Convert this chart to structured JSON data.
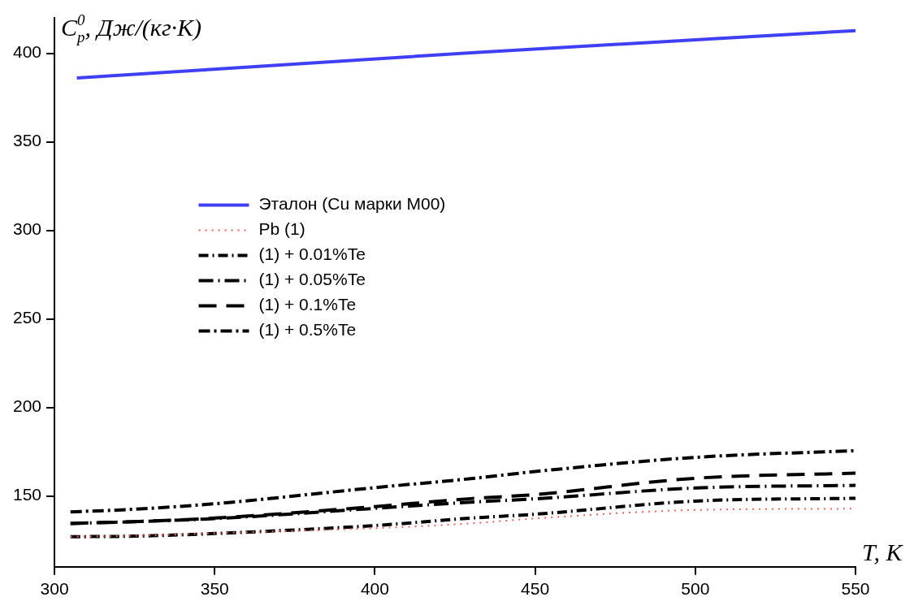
{
  "chart_data": {
    "type": "line",
    "xlabel": "T, K",
    "ylabel": "C$^{0}$$_{p}$, Дж/(кг·К)",
    "xlim": [
      300,
      550
    ],
    "xticks": [
      300,
      350,
      400,
      450,
      500,
      550
    ],
    "ylim": [
      110,
      420
    ],
    "yticks": [
      150,
      200,
      250,
      300,
      350,
      400
    ],
    "grid": false,
    "legend": "left",
    "marker": "none",
    "series": [
      {
        "name": "Эталон (Cu марки M00)",
        "color": "#3f3ff5",
        "line_style": "solid",
        "x": [
          307,
          430,
          550
        ],
        "values": [
          386,
          400.3,
          412.8
        ]
      },
      {
        "name": "Pb (1)",
        "color": "#f06060",
        "line_style": "dotted",
        "x": [
          305,
          325,
          350,
          400,
          430,
          450,
          500,
          550
        ],
        "values": [
          127,
          127.5,
          129,
          131.8,
          134.5,
          137.3,
          142.1,
          142.8
        ]
      },
      {
        "name": "(1) + 0.01%Te",
        "color": "#000000",
        "line_style": "dashed",
        "x": [
          305,
          325,
          350,
          400,
          430,
          450,
          500,
          550
        ],
        "values": [
          127,
          127.3,
          128.8,
          133.3,
          137.5,
          139.7,
          147.1,
          148.7
        ]
      },
      {
        "name": "(1) + 0.05%Te",
        "color": "#000000",
        "line_style": "dashed",
        "x": [
          305,
          325,
          350,
          400,
          430,
          450,
          500,
          550
        ],
        "values": [
          134.5,
          135.5,
          137.2,
          143,
          146.5,
          148.4,
          154.5,
          156
        ]
      },
      {
        "name": "(1) + 0.1%Te",
        "color": "#000000",
        "line_style": "dashed",
        "x": [
          305,
          325,
          350,
          400,
          430,
          450,
          500,
          550
        ],
        "values": [
          134.5,
          135.5,
          137.5,
          144,
          148.5,
          150.8,
          160,
          162.9
        ]
      },
      {
        "name": "(1) + 0.5%Te",
        "color": "#000000",
        "line_style": "dashed",
        "x": [
          305,
          325,
          350,
          400,
          430,
          450,
          500,
          550
        ],
        "values": [
          141,
          142.5,
          145.6,
          154.7,
          159.8,
          163.8,
          171.8,
          175.6
        ]
      }
    ]
  }
}
